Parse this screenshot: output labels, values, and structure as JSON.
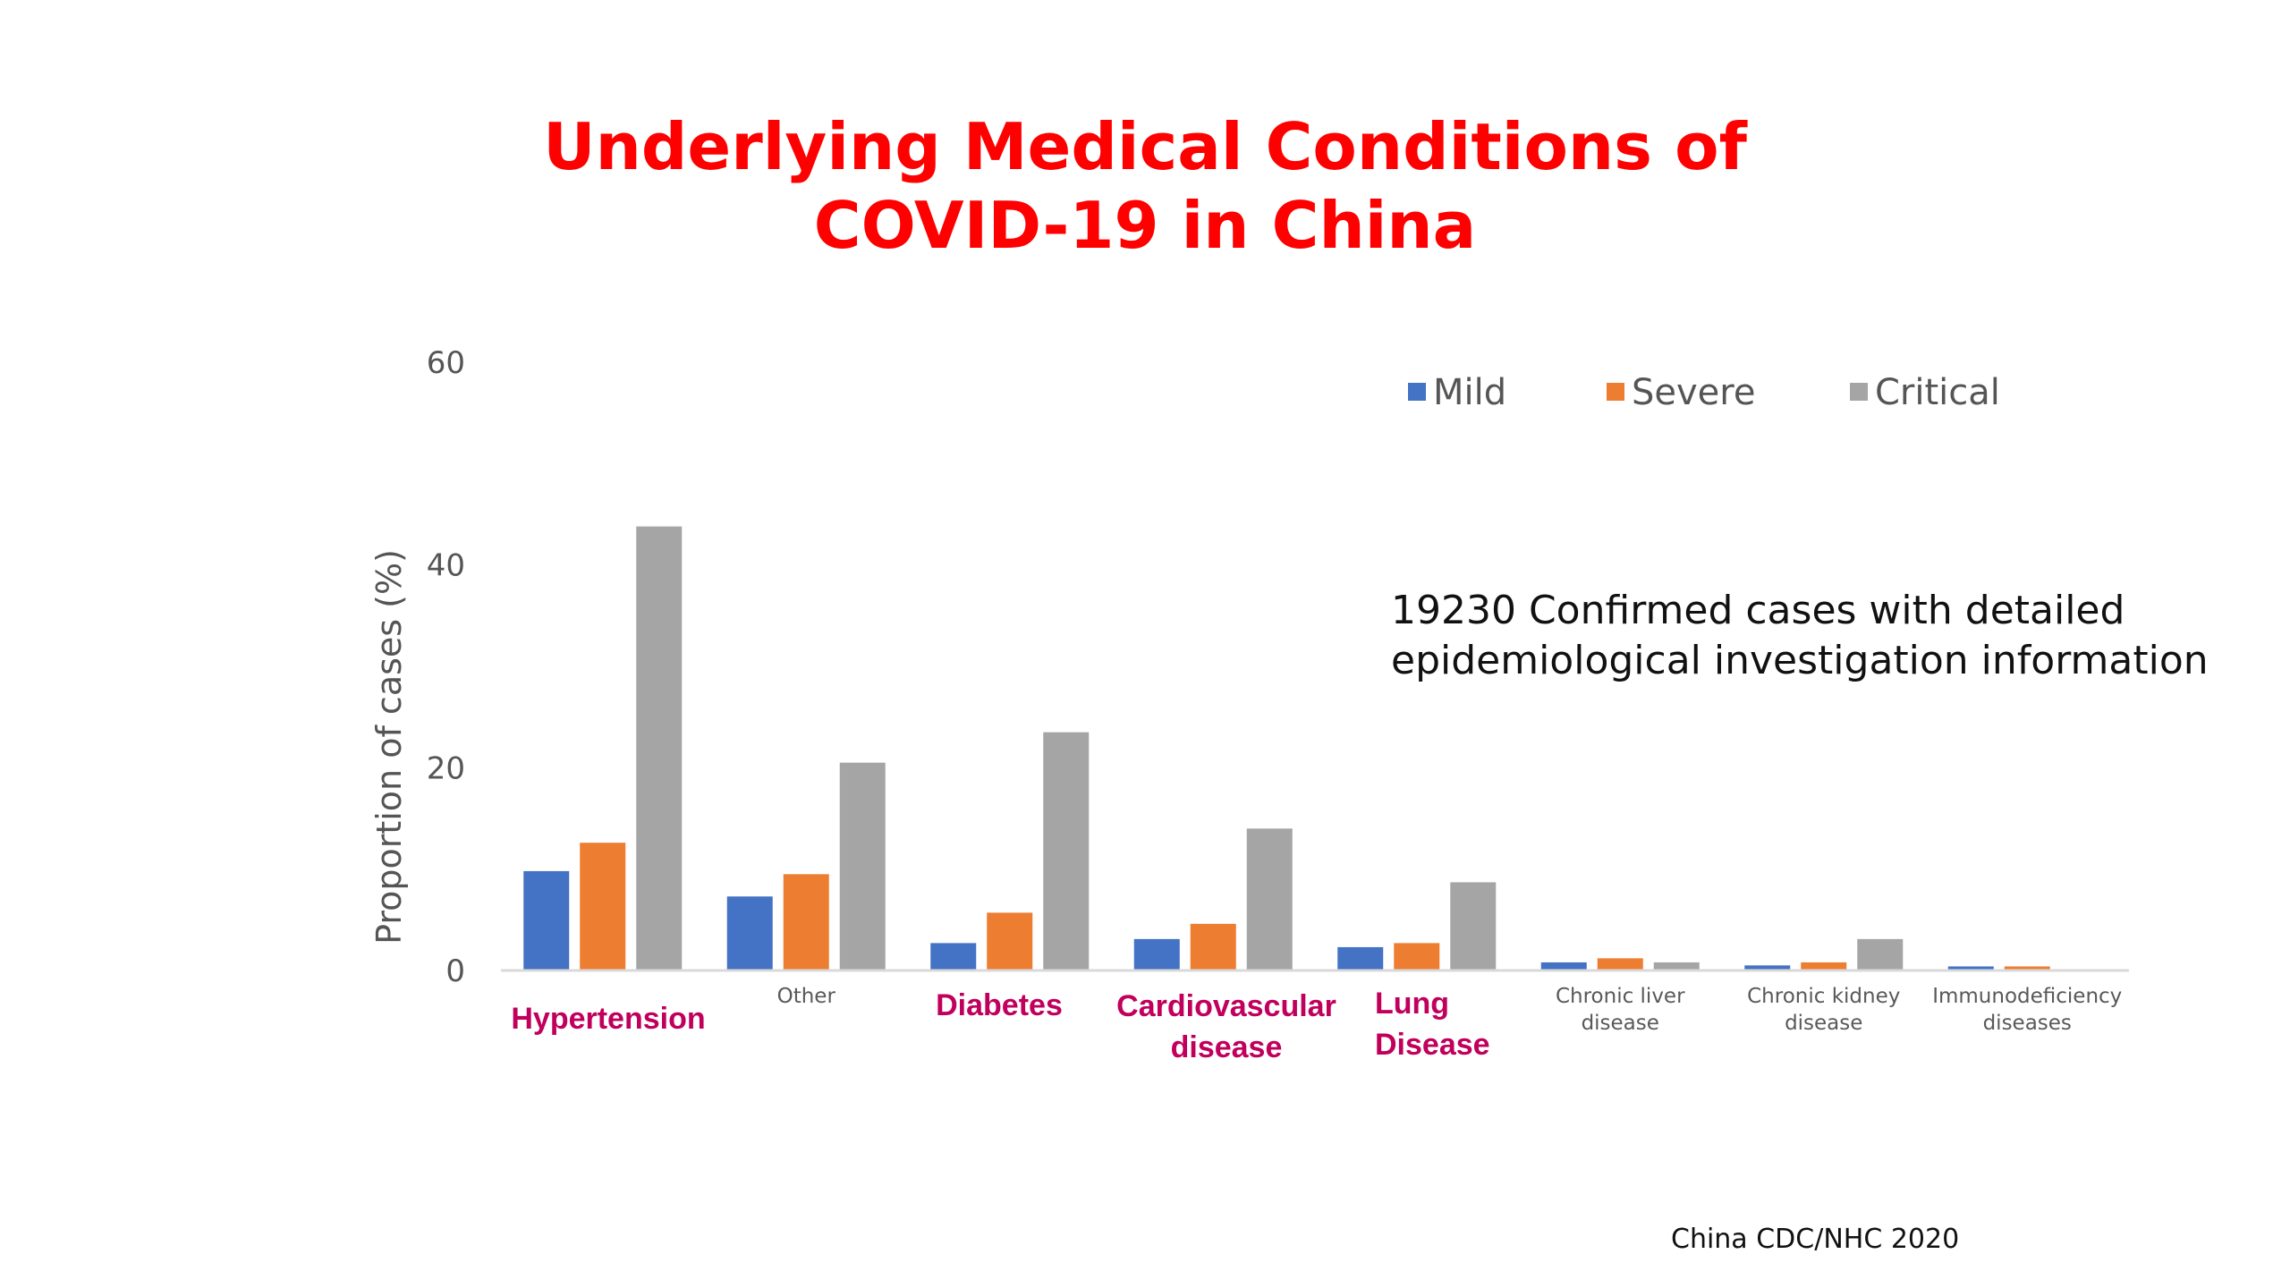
{
  "slide": {
    "title_lines": [
      "Underlying Medical Conditions of",
      "COVID-19 in China"
    ],
    "annotation_lines": [
      "19230 Confirmed cases with detailed",
      "epidemiological investigation information"
    ],
    "source": "China CDC/NHC  2020"
  },
  "chart_data": {
    "type": "bar",
    "title": "",
    "xlabel": "",
    "ylabel": "Proportion of cases (%)",
    "ylim": [
      0,
      60
    ],
    "yticks": [
      0,
      20,
      40,
      60
    ],
    "grid": false,
    "legend_position": "top-right",
    "categories": [
      [
        "Hypertension"
      ],
      [
        "Other"
      ],
      [
        "Diabetes"
      ],
      [
        "Cardiovascular",
        "disease"
      ],
      [
        "Lung",
        "Disease"
      ],
      [
        "Chronic  liver",
        "disease"
      ],
      [
        "Chronic  kidney",
        "disease"
      ],
      [
        "Immunodeficiency",
        "diseases"
      ]
    ],
    "series": [
      {
        "name": "Mild",
        "color": "#4472c4",
        "values": [
          9.8,
          7.3,
          2.7,
          3.1,
          2.3,
          0.8,
          0.5,
          0.4
        ]
      },
      {
        "name": "Severe",
        "color": "#ed7d31",
        "values": [
          12.6,
          9.5,
          5.7,
          4.6,
          2.7,
          1.2,
          0.8,
          0.4
        ]
      },
      {
        "name": "Critical",
        "color": "#a5a5a5",
        "values": [
          43.8,
          20.5,
          23.5,
          14.0,
          8.7,
          0.8,
          3.1,
          0.0
        ]
      }
    ],
    "highlighted_labels": [
      {
        "category_index": 0,
        "lines": [
          "Hypertension"
        ]
      },
      {
        "category_index": 2,
        "lines": [
          "Diabetes"
        ]
      },
      {
        "category_index": 3,
        "lines": [
          "Cardiovascular",
          "disease"
        ]
      },
      {
        "category_index": 4,
        "lines": [
          "Lung",
          "Disease"
        ]
      }
    ]
  }
}
